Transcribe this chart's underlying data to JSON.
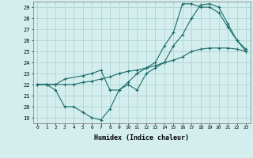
{
  "title": "",
  "xlabel": "Humidex (Indice chaleur)",
  "background_color": "#d4eeee",
  "grid_color": "#aed4d4",
  "line_color": "#1a6b6b",
  "xlim": [
    -0.5,
    23.5
  ],
  "ylim": [
    18.5,
    29.5
  ],
  "xticks": [
    0,
    1,
    2,
    3,
    4,
    5,
    6,
    7,
    8,
    9,
    10,
    11,
    12,
    13,
    14,
    15,
    16,
    17,
    18,
    19,
    20,
    21,
    22,
    23
  ],
  "yticks": [
    19,
    20,
    21,
    22,
    23,
    24,
    25,
    26,
    27,
    28,
    29
  ],
  "series1_x": [
    0,
    1,
    2,
    3,
    4,
    5,
    6,
    7,
    8,
    9,
    10,
    11,
    12,
    13,
    14,
    15,
    16,
    17,
    18,
    19,
    20,
    21,
    22,
    23
  ],
  "series1_y": [
    22,
    22,
    21.5,
    20,
    20,
    19.5,
    19,
    18.8,
    19.8,
    21.5,
    22,
    21.5,
    23,
    23.5,
    24,
    25.5,
    26.5,
    28,
    29.2,
    29.3,
    29,
    27.5,
    26,
    25
  ],
  "series2_x": [
    0,
    1,
    2,
    3,
    4,
    5,
    6,
    7,
    8,
    9,
    10,
    11,
    12,
    13,
    14,
    15,
    16,
    17,
    18,
    19,
    20,
    21,
    22,
    23
  ],
  "series2_y": [
    22,
    22,
    22,
    22,
    22,
    22.2,
    22.3,
    22.5,
    22.7,
    23,
    23.2,
    23.3,
    23.5,
    23.7,
    24,
    24.2,
    24.5,
    25,
    25.2,
    25.3,
    25.3,
    25.3,
    25.2,
    25
  ],
  "series3_x": [
    0,
    1,
    2,
    3,
    5,
    6,
    7,
    8,
    9,
    10,
    11,
    12,
    13,
    14,
    15,
    16,
    17,
    18,
    19,
    20,
    21,
    22,
    23
  ],
  "series3_y": [
    22,
    22,
    22,
    22.5,
    22.8,
    23,
    23.3,
    21.5,
    21.5,
    22.2,
    23,
    23.5,
    24,
    25.5,
    26.7,
    29.3,
    29.3,
    29,
    29,
    28.5,
    27.2,
    26,
    25.2
  ]
}
